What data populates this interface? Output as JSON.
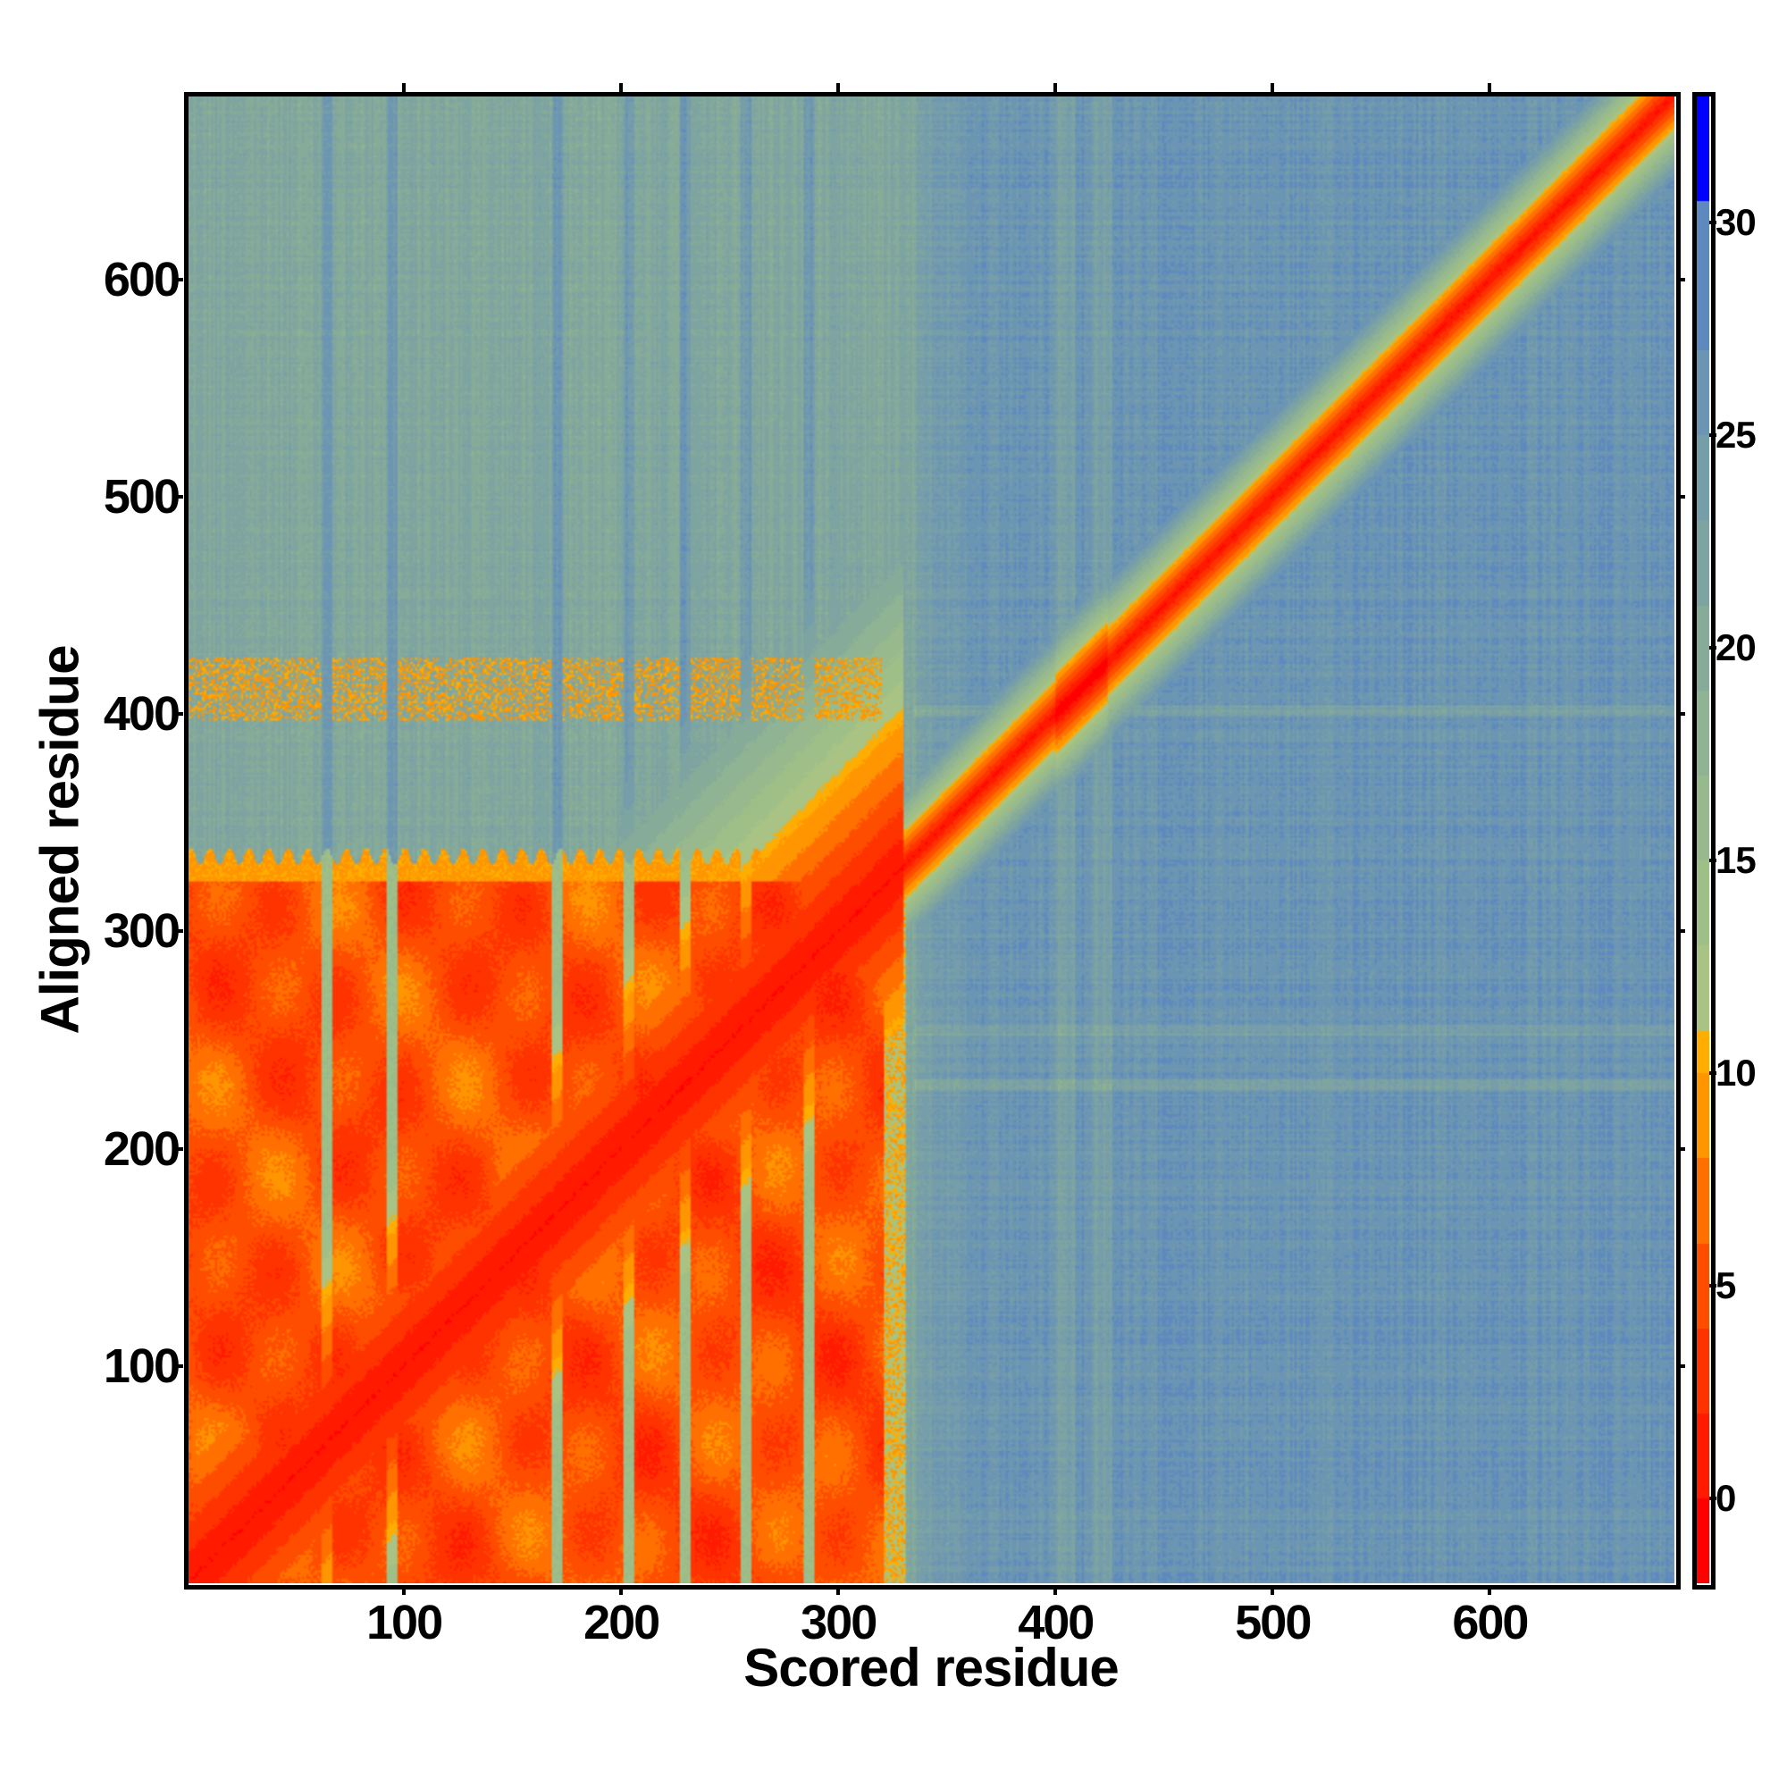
{
  "chart_data": {
    "type": "heatmap",
    "title": "",
    "xlabel": "Scored residue",
    "ylabel": "Aligned residue",
    "xlim": [
      0,
      685
    ],
    "ylim": [
      0,
      685
    ],
    "n_residues": 685,
    "x_ticks": [
      100,
      200,
      300,
      400,
      500,
      600
    ],
    "y_ticks": [
      100,
      200,
      300,
      400,
      500,
      600
    ],
    "colorbar": {
      "range": [
        -2,
        33
      ],
      "ticks": [
        0,
        5,
        10,
        15,
        20,
        25,
        30
      ],
      "bins": [
        {
          "max": 0,
          "color": "#ff0000"
        },
        {
          "max": 2,
          "color": "#ff1a00"
        },
        {
          "max": 4,
          "color": "#ff3300"
        },
        {
          "max": 6,
          "color": "#ff4d00"
        },
        {
          "max": 8,
          "color": "#ff7000"
        },
        {
          "max": 10,
          "color": "#ff9500"
        },
        {
          "max": 11,
          "color": "#ffad00"
        },
        {
          "max": 13,
          "color": "#a8c383"
        },
        {
          "max": 15,
          "color": "#9fbf88"
        },
        {
          "max": 17,
          "color": "#98b98d"
        },
        {
          "max": 19,
          "color": "#8fb393"
        },
        {
          "max": 21,
          "color": "#86ab99"
        },
        {
          "max": 23,
          "color": "#7ea4a2"
        },
        {
          "max": 25,
          "color": "#759daa"
        },
        {
          "max": 27,
          "color": "#6b95b2"
        },
        {
          "max": 30.5,
          "color": "#5d89bf"
        },
        {
          "max": 33,
          "color": "#0000ff"
        }
      ]
    },
    "regions": {
      "diagonal_value": 0,
      "low_error_block": {
        "x": [
          1,
          331
        ],
        "y": [
          1,
          335
        ],
        "value_range": [
          1,
          8
        ]
      },
      "block_gap_columns": [
        65,
        95,
        171,
        204,
        230,
        258,
        287
      ],
      "block_gap_value": 13,
      "band_rows": {
        "y": [
          398,
          426
        ],
        "x": [
          1,
          320
        ],
        "value": 9
      },
      "upper_left_background": {
        "x": [
          1,
          335
        ],
        "y": [
          340,
          685
        ],
        "value": 21
      },
      "background_value": 26,
      "faint_columns": [
        405,
        422
      ],
      "faint_rows": [
        230,
        255,
        402
      ]
    }
  }
}
